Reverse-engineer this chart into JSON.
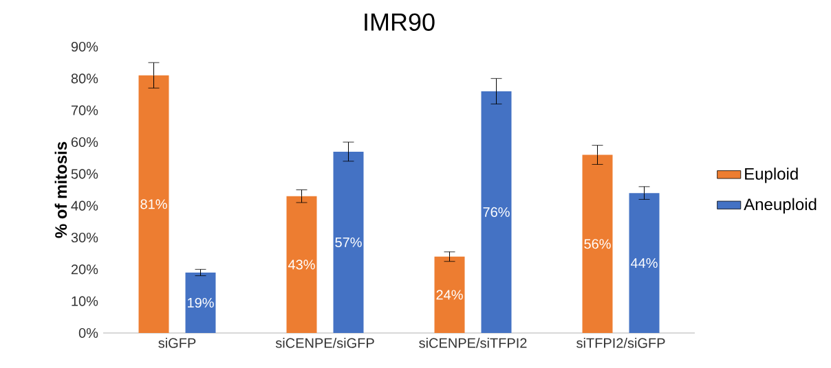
{
  "chart_data": {
    "type": "bar",
    "title": "IMR90",
    "ylabel": "% of mitosis",
    "categories": [
      "siGFP",
      "siCENPE/siGFP",
      "siCENPE/siTFPI2",
      "siTFPI2/siGFP"
    ],
    "series": [
      {
        "name": "Euploid",
        "color": "#ed7d31",
        "values": [
          81,
          43,
          24,
          56
        ],
        "errors": [
          4,
          2,
          1.5,
          3
        ],
        "value_labels": [
          "81%",
          "43%",
          "24%",
          "56%"
        ]
      },
      {
        "name": "Aneuploid",
        "color": "#4472c4",
        "values": [
          19,
          57,
          76,
          44
        ],
        "errors": [
          1,
          3,
          4,
          2
        ],
        "value_labels": [
          "19%",
          "57%",
          "76%",
          "44%"
        ]
      }
    ],
    "ylim": [
      0,
      90
    ],
    "yticks": [
      {
        "value": 0,
        "label": "0%"
      },
      {
        "value": 10,
        "label": "10%"
      },
      {
        "value": 20,
        "label": "20%"
      },
      {
        "value": 30,
        "label": "30%"
      },
      {
        "value": 40,
        "label": "40%"
      },
      {
        "value": 50,
        "label": "50%"
      },
      {
        "value": 60,
        "label": "60%"
      },
      {
        "value": 70,
        "label": "70%"
      },
      {
        "value": 80,
        "label": "80%"
      },
      {
        "value": 90,
        "label": "90%"
      }
    ],
    "legend": "right",
    "grid": false
  }
}
